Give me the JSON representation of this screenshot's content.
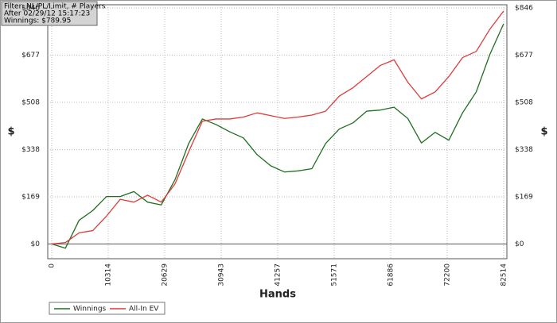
{
  "chart_data": {
    "type": "line",
    "info": [
      "Filter: NL/PL/Limit, # Players",
      "After 02/29/12 15:17:23",
      "Winnings: $789.95"
    ],
    "xlabel": "Hands",
    "ylabel": "$",
    "x": [
      0,
      2500,
      5000,
      7500,
      10000,
      12500,
      15000,
      17500,
      20000,
      22500,
      25000,
      27500,
      30000,
      32500,
      35000,
      37500,
      40000,
      42500,
      45000,
      47500,
      50000,
      52500,
      55000,
      57500,
      60000,
      62500,
      65000,
      67500,
      70000,
      72500,
      75000,
      77500,
      80000,
      82500
    ],
    "series": [
      {
        "name": "Winnings",
        "color": "#1e6e1e",
        "values": [
          0,
          -15,
          85,
          120,
          170,
          170,
          188,
          150,
          140,
          230,
          360,
          448,
          428,
          402,
          380,
          320,
          280,
          258,
          262,
          270,
          360,
          412,
          434,
          476,
          480,
          490,
          450,
          362,
          400,
          372,
          470,
          545,
          680,
          789
        ]
      },
      {
        "name": "All-In EV",
        "color": "#e03a3a",
        "values": [
          0,
          5,
          40,
          48,
          100,
          160,
          150,
          175,
          150,
          215,
          330,
          440,
          448,
          448,
          455,
          470,
          460,
          450,
          455,
          462,
          476,
          530,
          560,
          600,
          640,
          660,
          580,
          520,
          545,
          600,
          668,
          690,
          770,
          835
        ]
      }
    ],
    "xlim": [
      0,
      82514
    ],
    "xticks": [
      0,
      10314,
      20629,
      30943,
      41257,
      51571,
      61886,
      72200,
      82514
    ],
    "ylim": [
      -50,
      846
    ],
    "yticks": [
      {
        "value": 0,
        "label": "$0"
      },
      {
        "value": 169,
        "label": "$169"
      },
      {
        "value": 338,
        "label": "$338"
      },
      {
        "value": 508,
        "label": "$508"
      },
      {
        "value": 677,
        "label": "$677"
      },
      {
        "value": 846,
        "label": "$846"
      }
    ],
    "grid": true,
    "legend": "bottom-left"
  }
}
